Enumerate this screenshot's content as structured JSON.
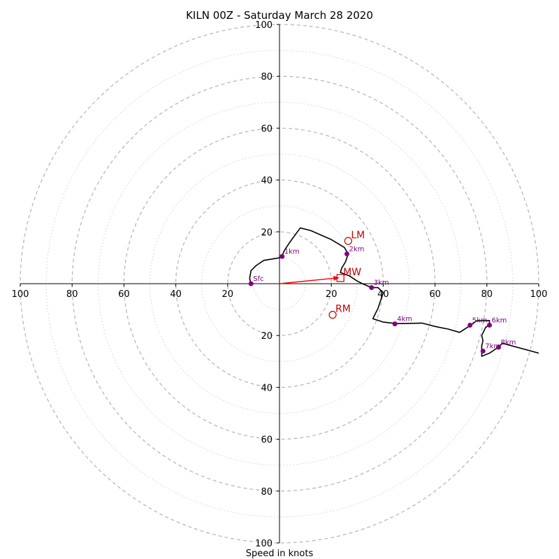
{
  "chart_data": {
    "type": "hodograph",
    "title": "KILN 00Z - Saturday March 28 2020",
    "xlabel": "Speed in knots",
    "ring_labels": [
      "20",
      "40",
      "60",
      "80",
      "100"
    ],
    "axis_range": [
      -100,
      100
    ],
    "grid": true,
    "trace": [
      [
        -11,
        0
      ],
      [
        -11.5,
        2
      ],
      [
        -11,
        5
      ],
      [
        -9,
        7
      ],
      [
        -6,
        9
      ],
      [
        -3,
        9.5
      ],
      [
        0,
        10
      ],
      [
        1,
        10.5
      ],
      [
        1.5,
        12
      ],
      [
        2,
        13
      ],
      [
        4,
        16
      ],
      [
        8,
        21.5
      ],
      [
        12,
        20.5
      ],
      [
        20,
        17
      ],
      [
        25,
        14
      ],
      [
        26.5,
        11.5
      ],
      [
        25.5,
        8.5
      ],
      [
        24,
        6
      ],
      [
        23.5,
        4.3
      ],
      [
        27,
        3
      ],
      [
        30,
        1
      ],
      [
        32,
        0
      ],
      [
        35.5,
        -1.5
      ],
      [
        38,
        -1.5
      ],
      [
        40,
        -3.5
      ],
      [
        39,
        -6.5
      ],
      [
        38,
        -9.5
      ],
      [
        36,
        -13.5
      ],
      [
        40,
        -14.8
      ],
      [
        45,
        -15.4
      ],
      [
        50,
        -15.3
      ],
      [
        55,
        -15.2
      ],
      [
        60,
        -16.5
      ],
      [
        65,
        -17.5
      ],
      [
        69.5,
        -18.8
      ],
      [
        73.5,
        -16.2
      ],
      [
        76,
        -14.3
      ],
      [
        81,
        -14.2
      ],
      [
        81,
        -15.8
      ],
      [
        79.5,
        -16.9
      ],
      [
        78,
        -20
      ],
      [
        78.5,
        -22
      ],
      [
        78,
        -24
      ],
      [
        78,
        -28
      ],
      [
        81,
        -26.8
      ],
      [
        84,
        -24.8
      ],
      [
        86,
        -23
      ],
      [
        100,
        -26.8
      ]
    ],
    "height_markers": [
      {
        "label": "Sfc",
        "u": -11,
        "v": 0
      },
      {
        "label": "1km",
        "u": 1,
        "v": 10.5
      },
      {
        "label": "2km",
        "u": 26,
        "v": 11.5
      },
      {
        "label": "3km",
        "u": 35.5,
        "v": -1.5
      },
      {
        "label": "4km",
        "u": 44.5,
        "v": -15.5
      },
      {
        "label": "5km",
        "u": 73.5,
        "v": -16
      },
      {
        "label": "6km",
        "u": 81,
        "v": -16
      },
      {
        "label": "7km",
        "u": 78.5,
        "v": -26
      },
      {
        "label": "8km",
        "u": 84.5,
        "v": -24.5
      }
    ],
    "motions": [
      {
        "label": "LM",
        "u": 26.5,
        "v": 16.5,
        "marker": "circle"
      },
      {
        "label": "RM",
        "u": 20.5,
        "v": -12,
        "marker": "circle"
      },
      {
        "label": "MW",
        "u": 23.5,
        "v": 2.2,
        "marker": "square"
      }
    ],
    "mean_wind_vector": {
      "u": 23,
      "v": 2.3
    },
    "colors": {
      "trace": "#000000",
      "markers": "#800080",
      "motions": "#c00000",
      "vector": "#ff0000",
      "grid": "#bbbbbb"
    }
  }
}
